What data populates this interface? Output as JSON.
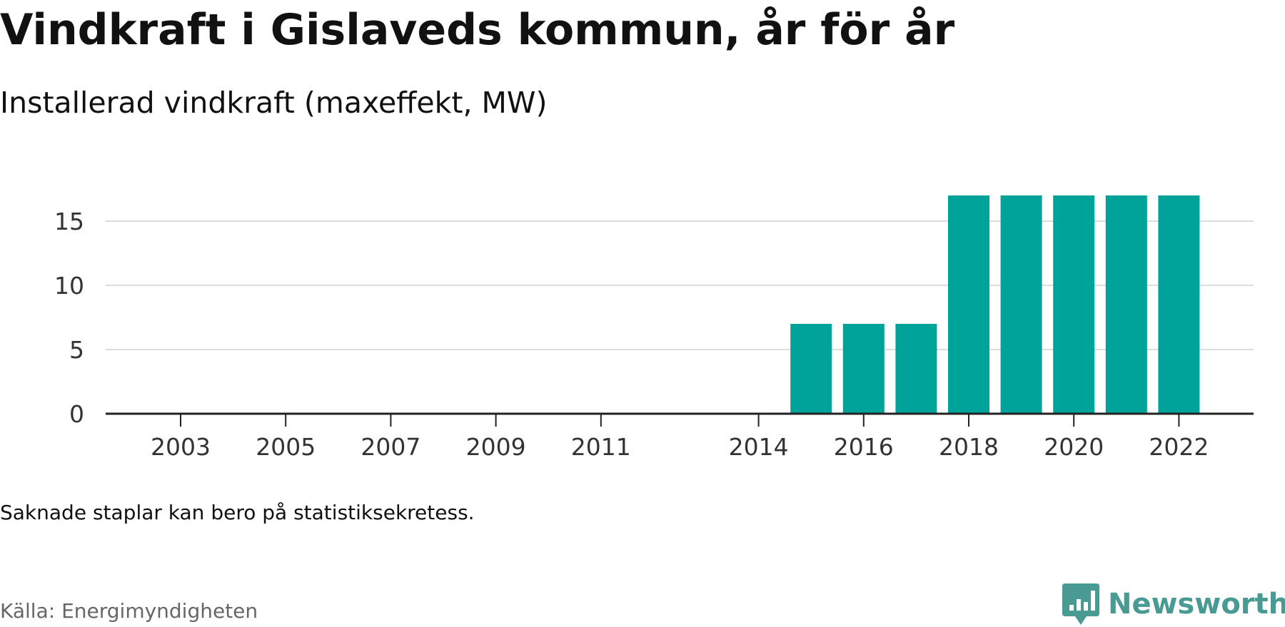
{
  "header": {
    "title": "Vindkraft i Gislaveds kommun, år för år",
    "subtitle": "Installerad vindkraft (maxeffekt, MW)"
  },
  "chart_data": {
    "type": "bar",
    "title": "Vindkraft i Gislaveds kommun, år för år",
    "subtitle": "Installerad vindkraft (maxeffekt, MW)",
    "categories": [
      "2003",
      "2004",
      "2005",
      "2006",
      "2007",
      "2008",
      "2009",
      "2010",
      "2011",
      "2012",
      "2013",
      "2014",
      "2015",
      "2016",
      "2017",
      "2018",
      "2019",
      "2020",
      "2021",
      "2022"
    ],
    "values": [
      0,
      0,
      0,
      0,
      0,
      0,
      0,
      0,
      0,
      null,
      null,
      0,
      7,
      7,
      7,
      17,
      17,
      17,
      17,
      17
    ],
    "x_tick_labels": [
      "2003",
      "2005",
      "2007",
      "2009",
      "2011",
      "2014",
      "2016",
      "2018",
      "2020",
      "2022"
    ],
    "y_ticks": [
      0,
      5,
      10,
      15
    ],
    "ylim": [
      0,
      17
    ],
    "xlabel": "",
    "ylabel": "",
    "grid": true,
    "bar_color": "#00a39a"
  },
  "footer": {
    "note": "Saknade staplar kan bero på statistiksekretess.",
    "source": "Källa: Energimyndigheten",
    "brand": "Newsworthy",
    "brand_color": "#4a9a94",
    "brand_icon": "newsworthy-logo-icon"
  }
}
